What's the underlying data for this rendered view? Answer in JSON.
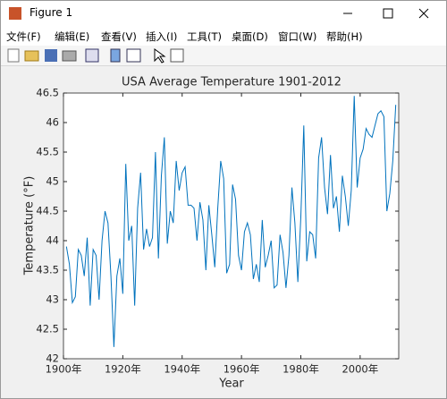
{
  "window": {
    "title": "Figure 1",
    "menu": [
      "文件(F)",
      "编辑(E)",
      "查看(V)",
      "插入(I)",
      "工具(T)",
      "桌面(D)",
      "窗口(W)",
      "帮助(H)"
    ]
  },
  "chart_data": {
    "type": "line",
    "title": "USA Average Temperature 1901-2012",
    "xlabel": "Year",
    "ylabel": "Temperature (°F)",
    "x": [
      1901,
      1902,
      1903,
      1904,
      1905,
      1906,
      1907,
      1908,
      1909,
      1910,
      1911,
      1912,
      1913,
      1914,
      1915,
      1916,
      1917,
      1918,
      1919,
      1920,
      1921,
      1922,
      1923,
      1924,
      1925,
      1926,
      1927,
      1928,
      1929,
      1930,
      1931,
      1932,
      1933,
      1934,
      1935,
      1936,
      1937,
      1938,
      1939,
      1940,
      1941,
      1942,
      1943,
      1944,
      1945,
      1946,
      1947,
      1948,
      1949,
      1950,
      1951,
      1952,
      1953,
      1954,
      1955,
      1956,
      1957,
      1958,
      1959,
      1960,
      1961,
      1962,
      1963,
      1964,
      1965,
      1966,
      1967,
      1968,
      1969,
      1970,
      1971,
      1972,
      1973,
      1974,
      1975,
      1976,
      1977,
      1978,
      1979,
      1980,
      1981,
      1982,
      1983,
      1984,
      1985,
      1986,
      1987,
      1988,
      1989,
      1990,
      1991,
      1992,
      1993,
      1994,
      1995,
      1996,
      1997,
      1998,
      1999,
      2000,
      2001,
      2002,
      2003,
      2004,
      2005,
      2006,
      2007,
      2008,
      2009,
      2010,
      2011,
      2012
    ],
    "values": [
      43.9,
      43.6,
      42.95,
      43.05,
      43.85,
      43.75,
      43.4,
      44.05,
      42.9,
      43.85,
      43.75,
      43.0,
      44.0,
      44.5,
      44.3,
      43.4,
      42.2,
      43.4,
      43.7,
      43.1,
      45.3,
      44.0,
      44.25,
      42.9,
      44.55,
      45.15,
      43.85,
      44.2,
      43.9,
      44.05,
      45.5,
      43.7,
      45.1,
      45.75,
      43.95,
      44.5,
      44.3,
      45.35,
      44.85,
      45.15,
      45.25,
      44.6,
      44.6,
      44.55,
      44.0,
      44.65,
      44.35,
      43.5,
      44.6,
      44.1,
      43.55,
      44.55,
      45.35,
      45.05,
      43.45,
      43.6,
      44.95,
      44.7,
      43.75,
      43.5,
      44.15,
      44.3,
      44.1,
      43.35,
      43.6,
      43.3,
      44.35,
      43.55,
      43.75,
      44.0,
      43.2,
      43.25,
      44.1,
      43.8,
      43.2,
      43.75,
      44.9,
      44.3,
      43.3,
      44.4,
      45.95,
      43.65,
      44.15,
      44.1,
      43.7,
      45.4,
      45.75,
      44.9,
      44.45,
      45.45,
      44.55,
      44.75,
      44.15,
      45.1,
      44.75,
      44.25,
      44.85,
      46.45,
      44.9,
      45.4,
      45.55,
      45.9,
      45.8,
      45.75,
      45.95,
      46.15,
      46.2,
      46.1,
      44.5,
      44.8,
      45.35,
      46.3
    ],
    "color": "#0072bd",
    "xlim": [
      1900,
      2013
    ],
    "xticks": [
      {
        "value": 1900,
        "label": "1900年"
      },
      {
        "value": 1920,
        "label": "1920年"
      },
      {
        "value": 1940,
        "label": "1940年"
      },
      {
        "value": 1960,
        "label": "1960年"
      },
      {
        "value": 1980,
        "label": "1980年"
      },
      {
        "value": 2000,
        "label": "2000年"
      }
    ],
    "ylim": [
      42,
      46.5
    ],
    "yticks": [
      42,
      42.5,
      43,
      43.5,
      44,
      44.5,
      45,
      45.5,
      46,
      46.5
    ],
    "grid": false
  }
}
